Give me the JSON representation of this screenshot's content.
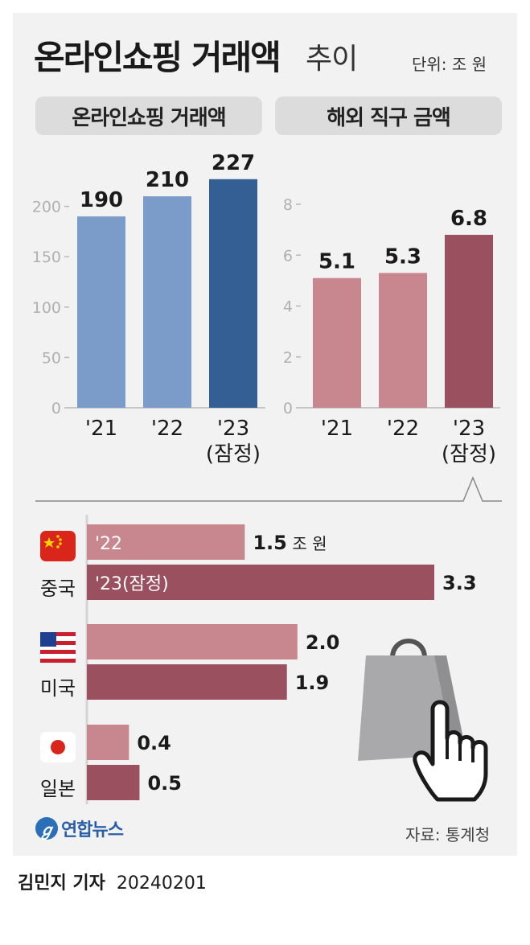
{
  "header": {
    "title_bold": "온라인쇼핑 거래액",
    "title_light": "추이",
    "unit": "단위: 조 원",
    "panel_left": "온라인쇼핑 거래액",
    "panel_right": "해외 직구 금액"
  },
  "footer": {
    "logo_text": "연합뉴스",
    "source": "자료: 통계청",
    "reporter": "김민지 기자",
    "date": "20240201"
  },
  "colors": {
    "blue_light": "#7b9cc8",
    "blue_dark": "#335f94",
    "pink_light": "#c8868f",
    "pink_dark": "#9b5060",
    "axis": "#b8b8b8"
  },
  "chart_data": [
    {
      "type": "bar",
      "title": "온라인쇼핑 거래액",
      "categories": [
        "'21",
        "'22",
        "'23\n(잠정)"
      ],
      "values": [
        190,
        210,
        227
      ],
      "ylim": [
        0,
        250
      ],
      "yticks": [
        0,
        50,
        100,
        150,
        200
      ],
      "grid": false
    },
    {
      "type": "bar",
      "title": "해외 직구 금액",
      "categories": [
        "'21",
        "'22",
        "'23\n(잠정)"
      ],
      "values": [
        5.1,
        5.3,
        6.8
      ],
      "ylim": [
        0,
        8
      ],
      "yticks": [
        0,
        2,
        4,
        6,
        8
      ],
      "grid": false
    },
    {
      "type": "bar",
      "orientation": "horizontal",
      "categories": [
        "중국",
        "미국",
        "일본"
      ],
      "series": [
        {
          "name": "'22",
          "values": [
            1.5,
            2.0,
            0.4
          ]
        },
        {
          "name": "'23(잠정)",
          "values": [
            3.3,
            1.9,
            0.5
          ]
        }
      ],
      "value_labels": [
        [
          "1.5",
          "2.0",
          "0.4"
        ],
        [
          "3.3",
          "1.9",
          "0.5"
        ]
      ],
      "first_label_unit": "조 원",
      "xlim": [
        0,
        3.3
      ]
    }
  ]
}
